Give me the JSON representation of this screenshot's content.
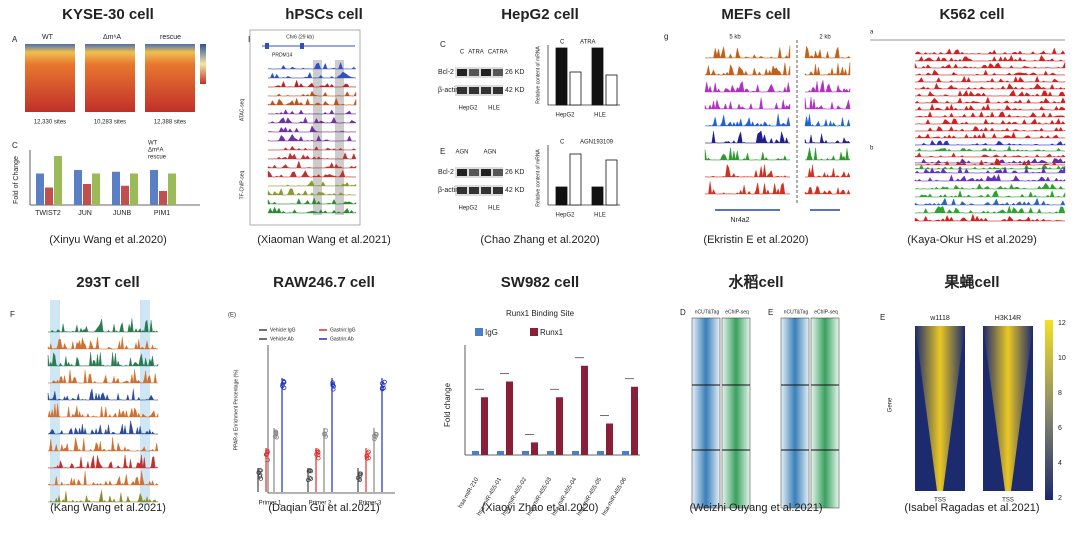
{
  "panels": [
    {
      "title": "KYSE-30 cell",
      "citation": "(Xinyu Wang et al.2020)",
      "labels": [
        "A",
        "WT",
        "Δm⁶A",
        "rescue",
        "12,330 sites",
        "10,283 sites",
        "12,388 sites",
        "C",
        "Fold of Change",
        "TWIST2",
        "JUN",
        "JUNB",
        "PIM1",
        "WT",
        "Δm⁶A",
        "rescue"
      ]
    },
    {
      "title": "hPSCs cell",
      "citation": "(Xiaoman Wang et al.2021)",
      "labels": [
        "I",
        "Chr6 (29 kb)",
        "PRDM14",
        "ATAC-seq",
        "TF-ChIP-seq"
      ]
    },
    {
      "title": "HepG2 cell",
      "citation": "(Chao Zhang et al.2020)",
      "labels": [
        "C",
        "C",
        "ATRA",
        "C",
        "ATRA",
        "Bcl-2",
        "β-actin",
        "26 KD",
        "42 KD",
        "HepG2",
        "HLE",
        "C",
        "ATRA",
        "HepG2",
        "HLE",
        "E",
        "AGN",
        "AGN",
        "Bcl-2",
        "β-actin",
        "26 KD",
        "42 KD",
        "HepG2",
        "HLE",
        "C",
        "AGN193109",
        "HepG2",
        "HLE",
        "Relative content of mRNA",
        "Relative content of mRNA"
      ]
    },
    {
      "title": "MEFs cell",
      "citation": "(Ekristin E et al.2020)",
      "labels": [
        "g",
        "5 kb",
        "2 kb",
        "Nr4a2"
      ]
    },
    {
      "title": "K562 cell",
      "citation": "(Kaya-Okur HS et al.2029)",
      "labels": [
        "a",
        "b"
      ]
    },
    {
      "title": "293T cell",
      "citation": "(Kang Wang et al.2021)",
      "labels": [
        "F"
      ]
    },
    {
      "title": "RAW246.7 cell",
      "citation": "(Daqian Gu et al.2021)",
      "labels": [
        "(E)",
        "Vehicle:IgG",
        "Gastrin:IgG",
        "Vehicle:Ab",
        "Gastrin:Ab",
        "Primer 1",
        "Primer 2",
        "Primer 3",
        "PPAR-α Enrichment Percentage (%)"
      ]
    },
    {
      "title": "SW982 cell",
      "citation": "(Xiaoyi Zhao et al.2020)",
      "labels": [
        "Runx1 Binding Site",
        "IgG",
        "Runx1",
        "Fold change",
        "hsa-miR-210",
        "hsa-miR-455-01",
        "hsa-miR-455-02",
        "hsa-miR-455-03",
        "hsa-miR-455-04",
        "hsa-miR-455-05",
        "hsa-miR-455-06"
      ]
    },
    {
      "title": "水稻cell",
      "citation": "(Weizhi Ouyang et al.2021)",
      "labels": [
        "D",
        "E",
        "nCUT&Tag",
        "eChIP-seq",
        "nCUT&Tag",
        "eChIP-seq"
      ]
    },
    {
      "title": "果蝇cell",
      "citation": "(Isabel Ragadas et al.2021)",
      "labels": [
        "E",
        "w1118",
        "H3K14R",
        "Gene",
        "TSS",
        "TSS",
        12,
        10,
        8,
        6,
        4,
        2
      ]
    }
  ]
}
